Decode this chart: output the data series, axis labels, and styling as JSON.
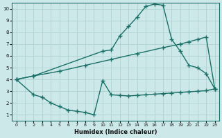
{
  "background_color": "#cce8e8",
  "grid_color": "#aacece",
  "line_color": "#1a7068",
  "line_width": 1.0,
  "marker": "+",
  "marker_size": 4,
  "marker_lw": 1.0,
  "xlabel": "Humidex (Indice chaleur)",
  "xlim": [
    -0.5,
    23.5
  ],
  "ylim": [
    0.5,
    10.5
  ],
  "xticks": [
    0,
    1,
    2,
    3,
    4,
    5,
    6,
    7,
    8,
    9,
    10,
    11,
    12,
    13,
    14,
    15,
    16,
    17,
    18,
    19,
    20,
    21,
    22,
    23
  ],
  "yticks": [
    1,
    2,
    3,
    4,
    5,
    6,
    7,
    8,
    9,
    10
  ],
  "series1": [
    [
      0,
      4.0
    ],
    [
      2,
      4.3
    ],
    [
      5,
      4.7
    ],
    [
      8,
      5.2
    ],
    [
      11,
      5.7
    ],
    [
      14,
      6.2
    ],
    [
      17,
      6.7
    ],
    [
      19,
      7.0
    ],
    [
      20,
      7.2
    ],
    [
      21,
      7.4
    ],
    [
      22,
      7.6
    ],
    [
      23,
      3.2
    ]
  ],
  "series2": [
    [
      0,
      4.0
    ],
    [
      2,
      2.7
    ],
    [
      3,
      2.5
    ],
    [
      4,
      2.0
    ],
    [
      5,
      1.7
    ],
    [
      6,
      1.4
    ],
    [
      7,
      1.3
    ],
    [
      8,
      1.2
    ],
    [
      9,
      1.0
    ],
    [
      10,
      3.9
    ],
    [
      11,
      2.7
    ],
    [
      12,
      2.65
    ],
    [
      13,
      2.6
    ],
    [
      14,
      2.65
    ],
    [
      15,
      2.7
    ],
    [
      16,
      2.75
    ],
    [
      17,
      2.8
    ],
    [
      18,
      2.85
    ],
    [
      19,
      2.9
    ],
    [
      20,
      2.95
    ],
    [
      21,
      3.0
    ],
    [
      22,
      3.05
    ],
    [
      23,
      3.2
    ]
  ],
  "series3": [
    [
      0,
      4.0
    ],
    [
      2,
      4.3
    ],
    [
      10,
      6.4
    ],
    [
      11,
      6.5
    ],
    [
      12,
      7.7
    ],
    [
      13,
      8.5
    ],
    [
      14,
      9.3
    ],
    [
      15,
      10.2
    ],
    [
      16,
      10.4
    ],
    [
      17,
      10.3
    ],
    [
      18,
      7.4
    ],
    [
      19,
      6.4
    ],
    [
      20,
      5.2
    ],
    [
      21,
      5.0
    ],
    [
      22,
      4.5
    ],
    [
      23,
      3.2
    ]
  ]
}
